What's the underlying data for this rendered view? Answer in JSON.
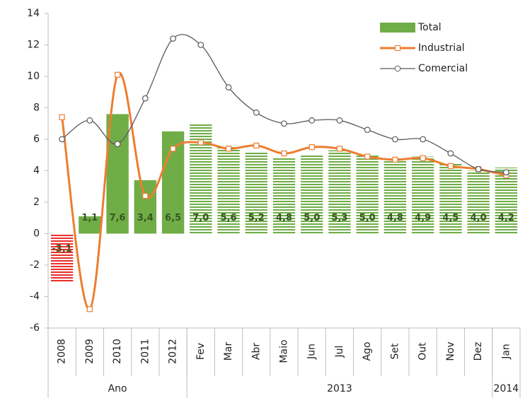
{
  "chart_data": {
    "type": "bar_line",
    "categories": [
      "2008",
      "2009",
      "2010",
      "2011",
      "2012",
      "Fev",
      "Mar",
      "Abr",
      "Maio",
      "Jun",
      "Jul",
      "Ago",
      "Set",
      "Out",
      "Nov",
      "Dez",
      "Jan"
    ],
    "groups": [
      {
        "label": "Ano",
        "count": 5
      },
      {
        "label": "2013",
        "count": 11
      },
      {
        "label": "2014",
        "count": 1
      }
    ],
    "series": [
      {
        "name": "Total",
        "type": "bar",
        "color": "#70ad47",
        "values": [
          -3.1,
          1.1,
          7.6,
          3.4,
          6.5,
          7.0,
          5.6,
          5.2,
          4.8,
          5.0,
          5.3,
          5.0,
          4.8,
          4.9,
          4.5,
          4.0,
          4.2
        ],
        "value_labels": [
          "-3,1",
          "1,1",
          "7,6",
          "3,4",
          "6,5",
          "7,0",
          "5,6",
          "5,2",
          "4,8",
          "5,0",
          "5,3",
          "5,0",
          "4,8",
          "4,9",
          "4,5",
          "4,0",
          "4,2"
        ],
        "bar_colors": [
          "#e8322e",
          "#70ad47",
          "#70ad47",
          "#70ad47",
          "#70ad47",
          "#70ad47",
          "#70ad47",
          "#70ad47",
          "#70ad47",
          "#70ad47",
          "#70ad47",
          "#70ad47",
          "#70ad47",
          "#70ad47",
          "#70ad47",
          "#70ad47",
          "#70ad47"
        ],
        "bar_styles": [
          "striped",
          "solid",
          "solid",
          "solid",
          "solid",
          "striped",
          "striped",
          "striped",
          "striped",
          "striped",
          "striped",
          "striped",
          "striped",
          "striped",
          "striped",
          "striped",
          "striped"
        ]
      },
      {
        "name": "Industrial",
        "type": "line",
        "color": "#ed7d31",
        "marker": "square",
        "values": [
          7.4,
          -4.8,
          10.1,
          2.4,
          5.4,
          5.8,
          5.4,
          5.6,
          5.1,
          5.5,
          5.4,
          4.9,
          4.7,
          4.8,
          4.3,
          4.1,
          3.7
        ]
      },
      {
        "name": "Comercial",
        "type": "line",
        "color": "#595959",
        "marker": "circle",
        "values": [
          6.0,
          7.2,
          5.7,
          8.6,
          12.4,
          12.0,
          9.3,
          7.7,
          7.0,
          7.2,
          7.2,
          6.6,
          6.0,
          6.0,
          5.1,
          4.1,
          3.9
        ]
      }
    ],
    "ylim": [
      -6,
      14
    ],
    "yticks": [
      -6,
      -4,
      -2,
      0,
      2,
      4,
      6,
      8,
      10,
      12,
      14
    ],
    "grid": false,
    "legend": "upper right",
    "smooth": true
  }
}
